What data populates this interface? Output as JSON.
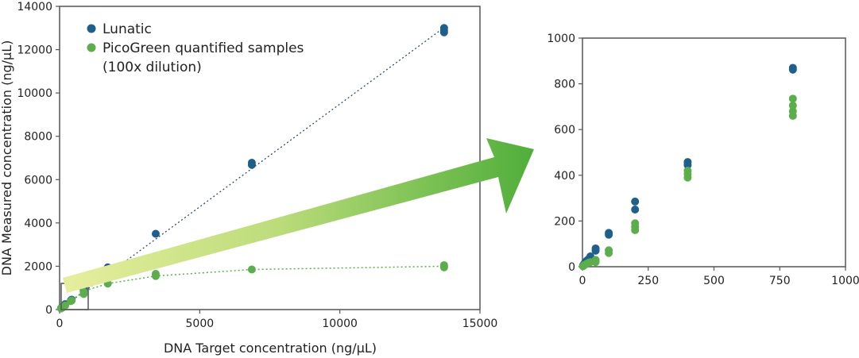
{
  "colors": {
    "lunatic": "#1f5f8b",
    "picogreen": "#5cae4c",
    "frame": "#555555",
    "arrow_dark": "#4fae3a",
    "arrow_light": "#e6ee9e"
  },
  "chart_data": [
    {
      "type": "scatter",
      "xlabel": "DNA Target concentration (ng/µL)",
      "ylabel": "DNA Measured concentration (ng/µL)",
      "xlim": [
        0,
        15000
      ],
      "ylim": [
        0,
        14000
      ],
      "xticks": [
        "0",
        "5000",
        "10000",
        "15000"
      ],
      "yticks": [
        "0",
        "2000",
        "4000",
        "6000",
        "8000",
        "10000",
        "12000",
        "14000"
      ],
      "legend": {
        "position": "top-left",
        "entries": [
          "Lunatic",
          "PicoGreen quantified samples",
          "(100x dilution)"
        ]
      },
      "series": [
        {
          "name": "Lunatic",
          "trendline": [
            [
              0,
              0
            ],
            [
              13700,
              13000
            ]
          ],
          "points": [
            [
              50,
              60
            ],
            [
              100,
              120
            ],
            [
              200,
              250
            ],
            [
              400,
              420
            ],
            [
              430,
              460
            ],
            [
              860,
              880
            ],
            [
              860,
              940
            ],
            [
              1720,
              1830
            ],
            [
              1720,
              1950
            ],
            [
              3430,
              3500
            ],
            [
              6860,
              6680
            ],
            [
              6860,
              6780
            ],
            [
              13720,
              12800
            ],
            [
              13720,
              12900
            ],
            [
              13720,
              13000
            ]
          ]
        },
        {
          "name": "PicoGreen quantified samples (100x dilution)",
          "trendline": [
            [
              0,
              0
            ],
            [
              860,
              850
            ],
            [
              1720,
              1200
            ],
            [
              3430,
              1550
            ],
            [
              6860,
              1850
            ],
            [
              13720,
              2000
            ]
          ],
          "points": [
            [
              50,
              50
            ],
            [
              100,
              90
            ],
            [
              200,
              190
            ],
            [
              400,
              390
            ],
            [
              430,
              420
            ],
            [
              860,
              720
            ],
            [
              860,
              820
            ],
            [
              1720,
              1200
            ],
            [
              3430,
              1550
            ],
            [
              3430,
              1650
            ],
            [
              6860,
              1850
            ],
            [
              13720,
              1950
            ],
            [
              13720,
              2050
            ]
          ]
        }
      ]
    },
    {
      "type": "scatter",
      "xlabel": "",
      "ylabel": "",
      "xlim": [
        0,
        1000
      ],
      "ylim": [
        0,
        1000
      ],
      "xticks": [
        "0",
        "250",
        "500",
        "750",
        "1000"
      ],
      "yticks": [
        "0",
        "200",
        "400",
        "600",
        "800",
        "1000"
      ],
      "series": [
        {
          "name": "Lunatic",
          "points": [
            [
              2,
              5
            ],
            [
              5,
              10
            ],
            [
              8,
              15
            ],
            [
              12,
              20
            ],
            [
              15,
              25
            ],
            [
              20,
              30
            ],
            [
              25,
              35
            ],
            [
              30,
              45
            ],
            [
              50,
              70
            ],
            [
              50,
              80
            ],
            [
              100,
              140
            ],
            [
              100,
              148
            ],
            [
              200,
              250
            ],
            [
              200,
              285
            ],
            [
              400,
              445
            ],
            [
              400,
              458
            ],
            [
              800,
              862
            ],
            [
              800,
              870
            ]
          ]
        },
        {
          "name": "PicoGreen quantified samples (100x dilution)",
          "points": [
            [
              2,
              2
            ],
            [
              5,
              5
            ],
            [
              8,
              8
            ],
            [
              12,
              10
            ],
            [
              15,
              12
            ],
            [
              20,
              15
            ],
            [
              25,
              18
            ],
            [
              30,
              20
            ],
            [
              50,
              20
            ],
            [
              50,
              30
            ],
            [
              100,
              60
            ],
            [
              100,
              72
            ],
            [
              200,
              160
            ],
            [
              200,
              175
            ],
            [
              200,
              190
            ],
            [
              400,
              390
            ],
            [
              400,
              405
            ],
            [
              400,
              420
            ],
            [
              800,
              660
            ],
            [
              800,
              680
            ],
            [
              800,
              705
            ],
            [
              800,
              735
            ]
          ]
        }
      ]
    }
  ]
}
